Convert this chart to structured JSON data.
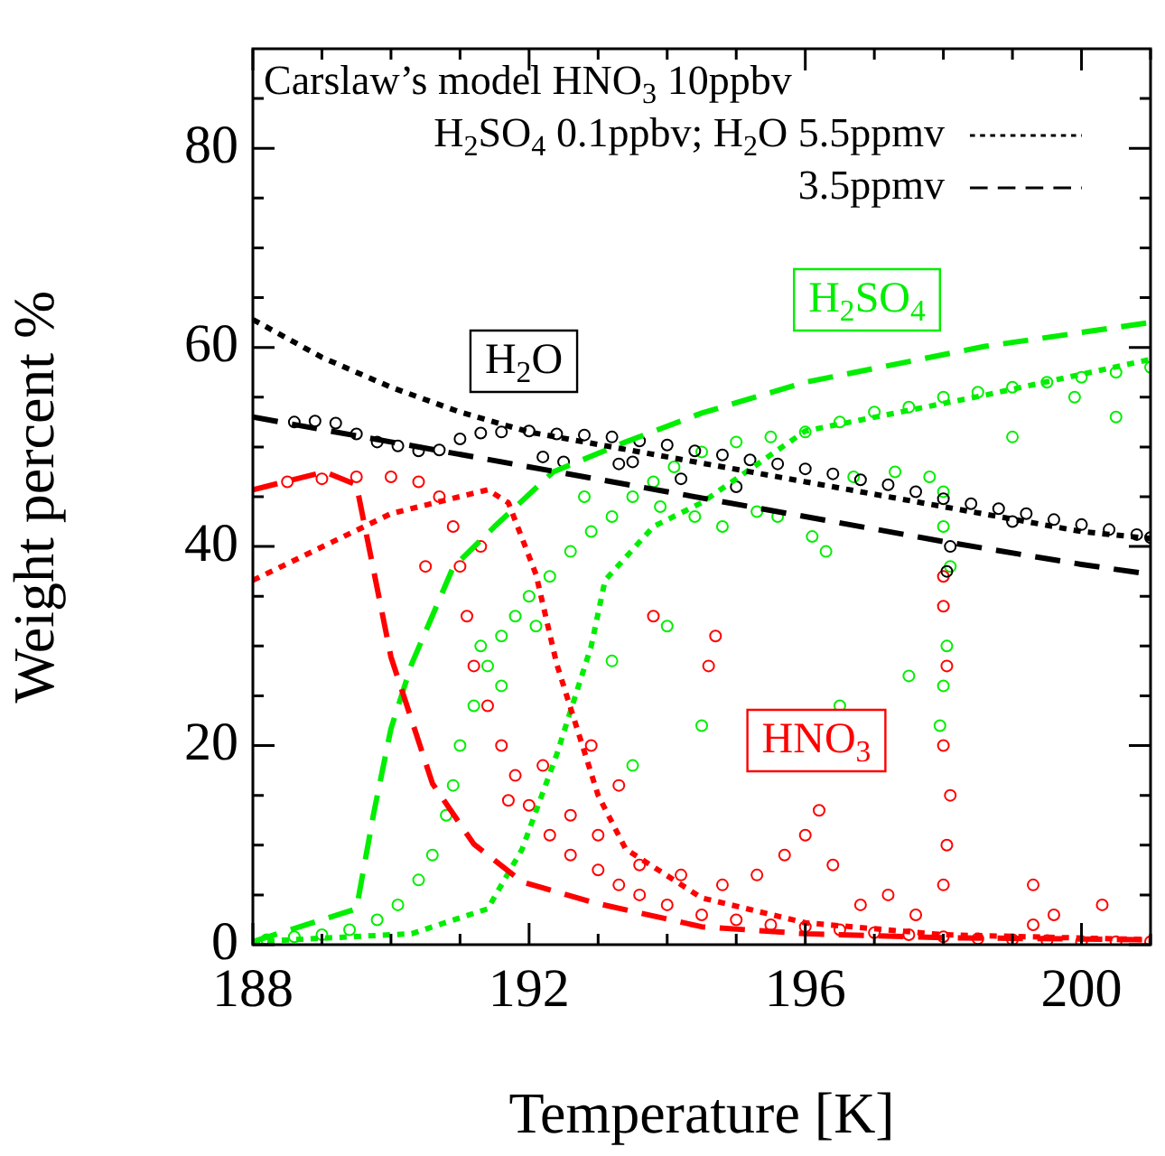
{
  "chart_data": {
    "type": "line",
    "xlabel": "Temperature [K]",
    "ylabel": "Weight percent %",
    "annotations": [
      "Carslaw’s model HNO$_{3}$ 10ppbv",
      "H$_{2}$O",
      "HNO$_{3}$",
      "H$_{2}$SO$_{4}$"
    ],
    "xlim": [
      188,
      201
    ],
    "ylim": [
      0,
      90
    ],
    "xticks": [
      188,
      {
        "value": 189,
        "label": null
      },
      {
        "value": 190,
        "label": null
      },
      {
        "value": 191,
        "label": null
      },
      192,
      {
        "value": 193,
        "label": null
      },
      {
        "value": 194,
        "label": null
      },
      {
        "value": 195,
        "label": null
      },
      196,
      {
        "value": 197,
        "label": null
      },
      {
        "value": 198,
        "label": null
      },
      {
        "value": 199,
        "label": null
      },
      200,
      {
        "value": 201,
        "label": null
      }
    ],
    "yticks": [
      0,
      {
        "value": 5,
        "label": null
      },
      {
        "value": 10,
        "label": null
      },
      {
        "value": 15,
        "label": null
      },
      20,
      {
        "value": 25,
        "label": null
      },
      {
        "value": 30,
        "label": null
      },
      {
        "value": 35,
        "label": null
      },
      40,
      {
        "value": 45,
        "label": null
      },
      {
        "value": 50,
        "label": null
      },
      {
        "value": 55,
        "label": null
      },
      60,
      {
        "value": 65,
        "label": null
      },
      {
        "value": 70,
        "label": null
      },
      {
        "value": 75,
        "label": null
      },
      80,
      {
        "value": 85,
        "label": null
      }
    ],
    "grid": false,
    "legend": "top right",
    "series": [
      {
        "type": "scatter",
        "marker": "circle",
        "color": "#000000",
        "x": [
          188.6,
          188.9,
          189.2,
          189.5,
          189.8,
          190.1,
          190.4,
          190.7,
          191,
          191.3,
          191.6,
          192,
          192.4,
          192.8,
          193.2,
          193.6,
          194,
          194.4,
          194.8,
          195.2,
          195.6,
          196,
          196.4,
          196.8,
          197.2,
          197.6,
          198,
          198.1,
          198.05,
          198.4,
          198.8,
          199.2,
          199.6,
          200,
          200.4,
          200.8,
          201,
          192.5,
          193.3,
          194.2,
          195,
          199,
          192.2,
          193.5
        ],
        "values": [
          52.5,
          52.6,
          52.4,
          51.3,
          50.5,
          50.1,
          49.6,
          49.7,
          50.8,
          51.4,
          51.5,
          51.6,
          51.3,
          51.2,
          51,
          50.6,
          50.2,
          49.6,
          49.2,
          48.7,
          48.3,
          47.8,
          47.3,
          46.7,
          46.2,
          45.5,
          44.8,
          40,
          37.5,
          44.3,
          43.8,
          43.3,
          42.7,
          42.2,
          41.7,
          41.2,
          40.9,
          48.5,
          48.3,
          46.8,
          46,
          42.5,
          49,
          48.5
        ]
      },
      {
        "type": "scatter",
        "marker": "circle",
        "color": "#ff0000",
        "x": [
          188.5,
          189,
          189.5,
          190,
          190.4,
          190.7,
          190.9,
          191,
          191.1,
          191.2,
          191.4,
          191.6,
          191.8,
          192,
          192.3,
          192.6,
          193,
          193.3,
          193.6,
          194,
          194.5,
          195,
          195.5,
          196,
          196.5,
          197,
          197.5,
          198,
          198.5,
          199,
          199.5,
          200,
          200.5,
          201,
          191.7,
          192.2,
          192.6,
          193,
          193.6,
          194.2,
          194.8,
          195.3,
          195.7,
          196,
          196.2,
          196.4,
          196.8,
          197.2,
          197.6,
          198,
          198.05,
          198.1,
          198,
          198.05,
          198,
          198,
          199.3,
          199.6,
          200.3,
          194.6,
          194.7,
          193.8,
          192.9,
          193.3,
          190.5,
          191.3,
          199.3
        ],
        "values": [
          46.5,
          46.8,
          47,
          47,
          46.5,
          45,
          42,
          38,
          33,
          28,
          24,
          20,
          17,
          14,
          11,
          9,
          7.5,
          6,
          5,
          4,
          3,
          2.5,
          2,
          1.8,
          1.5,
          1.2,
          1,
          0.8,
          0.6,
          0.5,
          0.4,
          0.3,
          0.3,
          0.3,
          14.5,
          18,
          13,
          11,
          8,
          7,
          6,
          7,
          9,
          11,
          13.5,
          8,
          4,
          5,
          3,
          6,
          10,
          15,
          20,
          28,
          34,
          37,
          6,
          3,
          4,
          28,
          31,
          33,
          20,
          16,
          38,
          40,
          2
        ]
      },
      {
        "type": "scatter",
        "marker": "circle",
        "color": "#00ee00",
        "x": [
          188.2,
          188.6,
          189,
          189.4,
          189.8,
          190.1,
          190.4,
          190.6,
          190.8,
          190.9,
          191,
          191.2,
          191.4,
          191.6,
          191.8,
          192,
          192.3,
          192.6,
          192.9,
          193.2,
          193.5,
          193.8,
          194.1,
          194.5,
          195,
          195.5,
          196,
          196.5,
          197,
          197.5,
          198,
          198.5,
          199,
          199.5,
          200,
          200.5,
          201,
          191.3,
          191.6,
          192.1,
          192.8,
          193.9,
          194.4,
          194.8,
          195.3,
          195.6,
          196.1,
          196.3,
          196.7,
          197.3,
          197.8,
          198,
          198,
          198.1,
          198.05,
          198,
          197.95,
          199,
          200.5,
          199.9,
          194,
          193.2,
          194.5,
          193.5,
          196.5,
          197.5
        ],
        "values": [
          0.5,
          0.8,
          1,
          1.5,
          2.5,
          4,
          6.5,
          9,
          13,
          16,
          20,
          24,
          28,
          31,
          33,
          35,
          37,
          39.5,
          41.5,
          43,
          45,
          46.5,
          48,
          49.5,
          50.5,
          51,
          51.5,
          52.5,
          53.5,
          54,
          55,
          55.5,
          56,
          56.5,
          57,
          57.5,
          58,
          30,
          26,
          32,
          45,
          44,
          43,
          42,
          43.5,
          43,
          41,
          39.5,
          47,
          47.5,
          47,
          45.5,
          42,
          38,
          30,
          26,
          22,
          51,
          53,
          55,
          32,
          28.5,
          22,
          18,
          24,
          27
        ]
      },
      {
        "line_style": "dotted",
        "name": "H$_{2}$SO$_{4}$ 0.1ppbv; H$_{2}$O 5.5ppmv",
        "color": "#000000",
        "x": [
          188,
          189,
          190,
          191,
          192,
          194,
          196,
          198,
          200,
          201
        ],
        "values": [
          62.8,
          59,
          56,
          53.5,
          51.5,
          49,
          46.5,
          44,
          41.5,
          40.8
        ]
      },
      {
        "line_style": "dashed",
        "name": "3.5ppmv",
        "color": "#000000",
        "x": [
          188,
          190,
          192,
          194,
          196,
          198,
          200,
          201
        ],
        "values": [
          53,
          50.5,
          48,
          45.5,
          43,
          40.5,
          38.2,
          37.2
        ]
      },
      {
        "line_style": "dashed",
        "color": "#ff0000",
        "x": [
          188,
          189.04,
          189.5,
          190,
          190.6,
          191.2,
          191.9,
          192.95,
          194.5,
          196,
          198,
          201
        ],
        "values": [
          45.7,
          47.5,
          46.2,
          28.9,
          16.2,
          10.1,
          6.3,
          4.2,
          1.8,
          1.1,
          0.7,
          0.5
        ]
      },
      {
        "line_style": "dotted",
        "color": "#ff0000",
        "x": [
          188,
          190,
          191.4,
          191.7,
          192.1,
          192.4,
          193,
          193.4,
          194.5,
          196,
          198,
          201
        ],
        "values": [
          36.6,
          43.3,
          45.7,
          44.4,
          37.2,
          28.2,
          15,
          9.6,
          4.7,
          2.2,
          1,
          0.5
        ]
      },
      {
        "line_style": "dashed",
        "color": "#00ee00",
        "x": [
          188,
          189.5,
          189.75,
          190,
          190.3,
          190.9,
          191.5,
          192.35,
          193.4,
          194.5,
          196,
          198.6,
          201
        ],
        "values": [
          0.3,
          3.6,
          13.2,
          21.7,
          28.2,
          37.9,
          42,
          47.5,
          50.5,
          53.4,
          56.5,
          60.1,
          62.5
        ]
      },
      {
        "line_style": "dotted",
        "color": "#00ee00",
        "x": [
          188,
          190.3,
          191.4,
          191.9,
          192.4,
          192.9,
          193.1,
          193.8,
          194.5,
          196,
          198.6,
          201
        ],
        "values": [
          0.3,
          1.1,
          3.6,
          9.6,
          19.1,
          30,
          36.6,
          42,
          44.4,
          51.6,
          55.2,
          58.8
        ]
      }
    ]
  }
}
